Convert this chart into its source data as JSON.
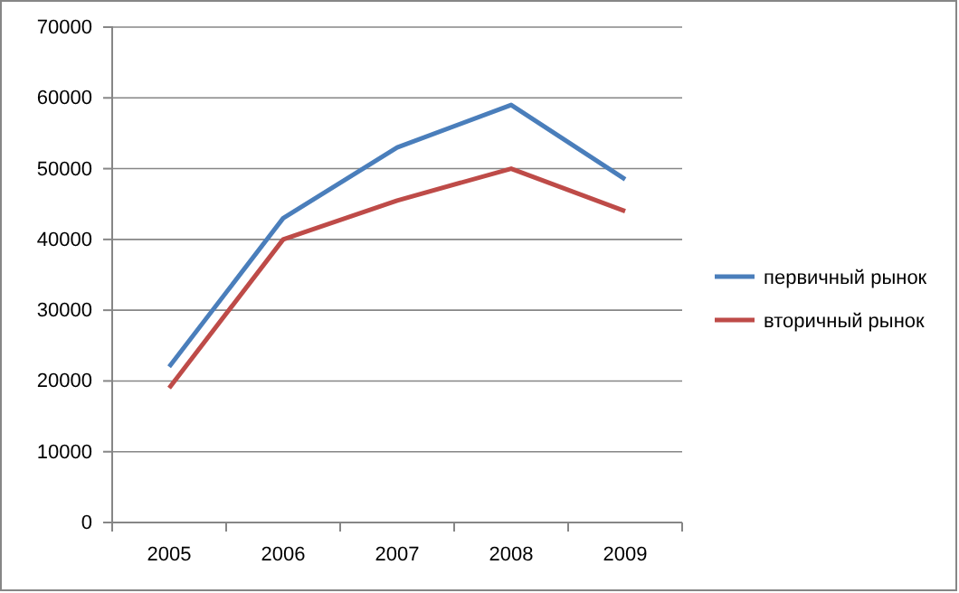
{
  "chart_data": {
    "type": "line",
    "categories": [
      "2005",
      "2006",
      "2007",
      "2008",
      "2009"
    ],
    "series": [
      {
        "name": "первичный рынок",
        "color": "#4a7ebb",
        "values": [
          22000,
          43000,
          53000,
          59000,
          48500
        ]
      },
      {
        "name": "вторичный рынок",
        "color": "#be4b48",
        "values": [
          19000,
          40000,
          45500,
          50000,
          44000
        ]
      }
    ],
    "ylim": [
      0,
      70000
    ],
    "yticks": [
      0,
      10000,
      20000,
      30000,
      40000,
      50000,
      60000,
      70000
    ],
    "grid": "y",
    "legend": "right",
    "marker": "none",
    "line_style": "solid"
  }
}
